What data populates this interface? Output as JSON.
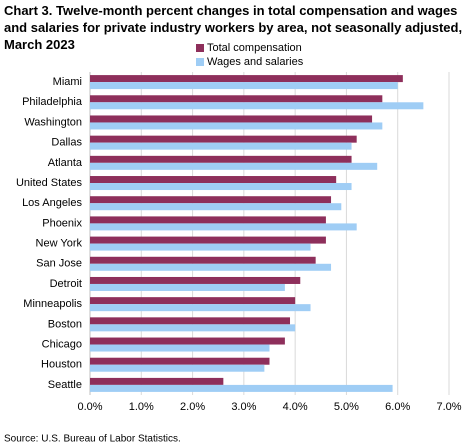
{
  "chart_data": {
    "type": "hbar",
    "title": "Chart 3. Twelve-month percent changes in total compensation and wages and salaries for private industry workers by area, not seasonally adjusted, March 2023",
    "source": "Source: U.S. Bureau of Labor Statistics.",
    "categories": [
      "Miami",
      "Philadelphia",
      "Washington",
      "Dallas",
      "Atlanta",
      "United States",
      "Los Angeles",
      "Phoenix",
      "New York",
      "San Jose",
      "Detroit",
      "Minneapolis",
      "Boston",
      "Chicago",
      "Houston",
      "Seattle"
    ],
    "series": [
      {
        "name": "Total compensation",
        "color": "#8e2f5b",
        "values": [
          6.1,
          5.7,
          5.5,
          5.2,
          5.1,
          4.8,
          4.7,
          4.6,
          4.6,
          4.4,
          4.1,
          4.0,
          3.9,
          3.8,
          3.5,
          2.6
        ]
      },
      {
        "name": "Wages and salaries",
        "color": "#9fcdf5",
        "values": [
          6.0,
          6.5,
          5.7,
          5.1,
          5.6,
          5.1,
          4.9,
          5.2,
          4.3,
          4.7,
          3.8,
          4.3,
          4.0,
          3.5,
          3.4,
          5.9
        ]
      }
    ],
    "xlim": [
      0,
      7
    ],
    "xticks": [
      {
        "value": 0,
        "label": "0.0%"
      },
      {
        "value": 1,
        "label": "1.0%"
      },
      {
        "value": 2,
        "label": "2.0%"
      },
      {
        "value": 3,
        "label": "3.0%"
      },
      {
        "value": 4,
        "label": "4.0%"
      },
      {
        "value": 5,
        "label": "5.0%"
      },
      {
        "value": 6,
        "label": "6.0%"
      },
      {
        "value": 7,
        "label": "7.0%"
      }
    ],
    "grid": true
  }
}
